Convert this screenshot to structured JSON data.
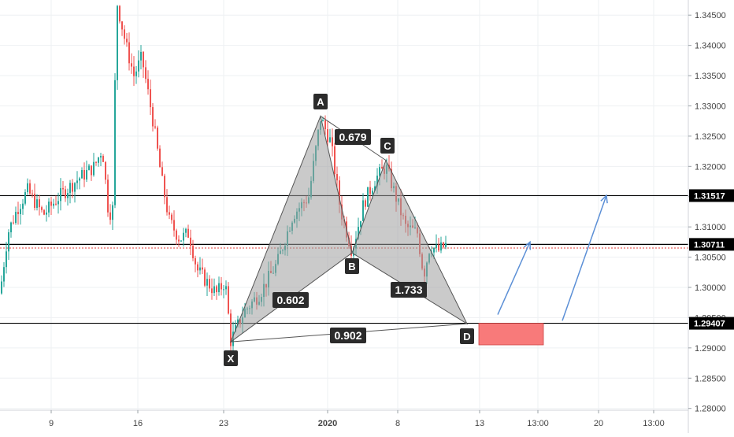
{
  "chart_data": {
    "type": "candlestick",
    "instrument_price_axis": {
      "ticks": [
        1.28,
        1.285,
        1.29,
        1.295,
        1.3,
        1.305,
        1.31,
        1.315,
        1.32,
        1.325,
        1.33,
        1.335,
        1.34,
        1.345
      ],
      "tick_labels": [
        "1.28000",
        "1.28500",
        "1.29000",
        "1.29500",
        "1.30000",
        "1.30500",
        "1.31000",
        "1.31500",
        "1.32000",
        "1.32500",
        "1.33000",
        "1.33500",
        "1.34000",
        "1.34500"
      ],
      "ylim": [
        1.2797,
        1.3475
      ]
    },
    "time_axis": {
      "tick_labels": [
        "9",
        "16",
        "23",
        "2020",
        "8",
        "13",
        "13:00",
        "20",
        "13:00"
      ]
    },
    "horizontal_levels": [
      {
        "label": "1.31517",
        "price": 1.31517
      },
      {
        "label": "1.30711",
        "price": 1.30711
      },
      {
        "label": "1.29407",
        "price": 1.29407
      }
    ],
    "current_price_line": {
      "price": 1.3065,
      "style": "dotted",
      "color": "#e53935"
    },
    "harmonic_pattern": {
      "points": [
        {
          "label": "X",
          "price": 1.291
        },
        {
          "label": "A",
          "price": 1.3283
        },
        {
          "label": "B",
          "price": 1.3057
        },
        {
          "label": "C",
          "price": 1.321
        },
        {
          "label": "D",
          "price": 1.294
        }
      ],
      "ratios": [
        {
          "leg": "XAB",
          "value": "0.602"
        },
        {
          "leg": "ABC",
          "value": "0.679"
        },
        {
          "leg": "BCD",
          "value": "1.733"
        },
        {
          "leg": "XAD",
          "value": "0.902"
        }
      ]
    },
    "target_zone": {
      "price_top": 1.29407,
      "price_bottom": 1.2905,
      "color": "#f87a7a"
    },
    "projection_arrows": [
      {
        "from_price": 1.2955,
        "to_price": 1.3075
      },
      {
        "from_price": 1.2945,
        "to_price": 1.3152
      }
    ],
    "colors": {
      "up": "#26a69a",
      "down": "#ef5350",
      "pattern_fill": "#9e9e9e",
      "arrow": "#5b8fd6",
      "label_bg": "#2b2b2b"
    }
  }
}
